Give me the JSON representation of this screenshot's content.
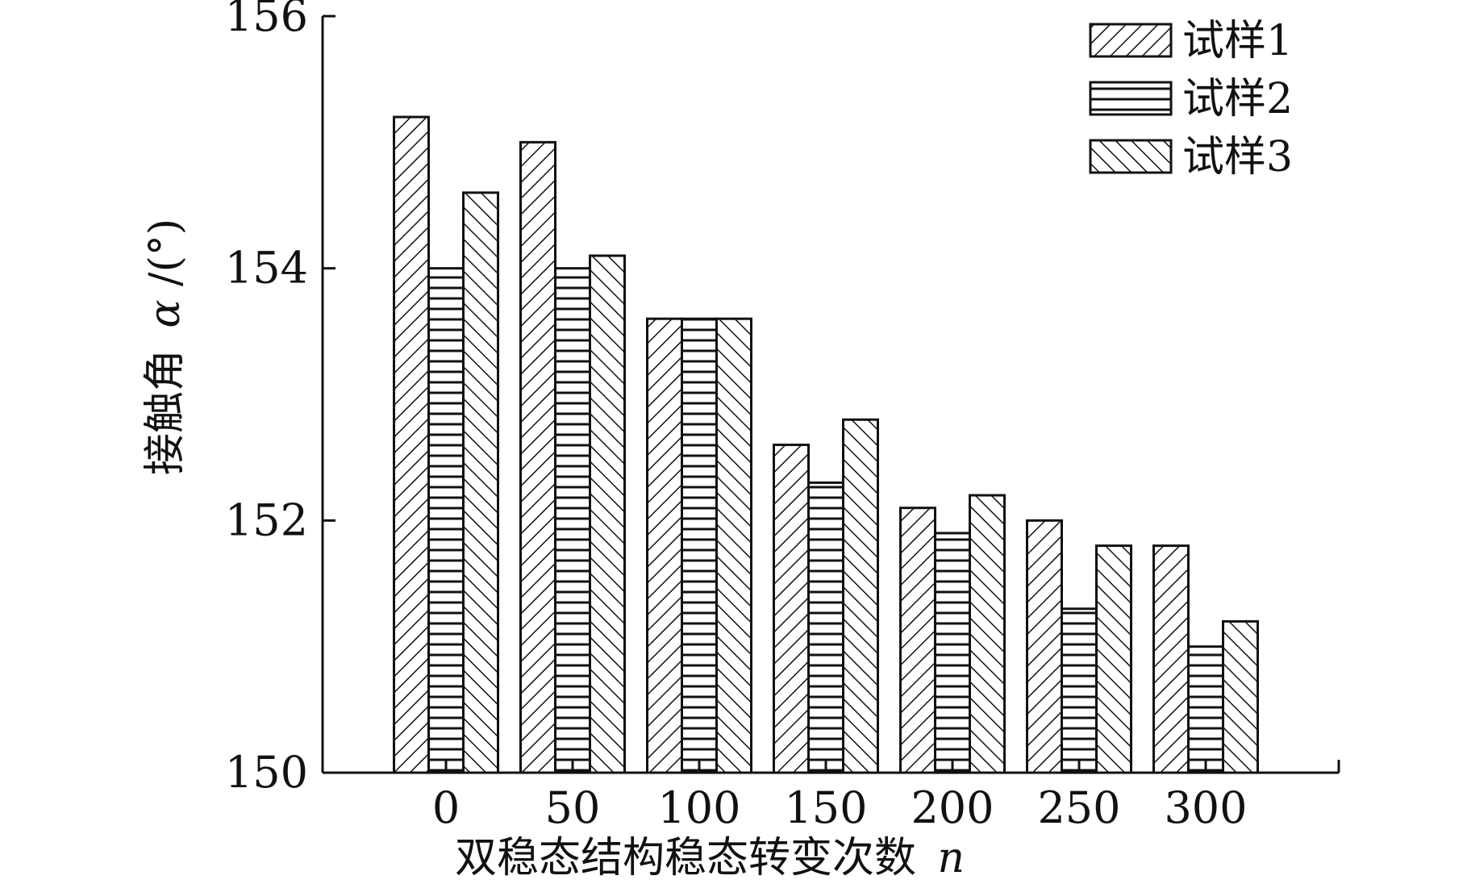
{
  "chart_data": {
    "type": "bar",
    "title": "",
    "xlabel": "双稳态结构稳态转变次数",
    "xlabel_var": "n",
    "ylabel": "接触角",
    "ylabel_var": "α",
    "ylabel_unit": "/(°)",
    "categories": [
      "0",
      "50",
      "100",
      "150",
      "200",
      "250",
      "300"
    ],
    "ylim": [
      150,
      156
    ],
    "yticks": [
      "150",
      "152",
      "154",
      "156"
    ],
    "grid": false,
    "legend_position": "top-right",
    "series": [
      {
        "name": "试样1",
        "pattern": "hatch-forward",
        "values": [
          155.2,
          155.0,
          153.6,
          152.6,
          152.1,
          152.0,
          151.8
        ]
      },
      {
        "name": "试样2",
        "pattern": "hatch-horizontal",
        "values": [
          154.0,
          154.0,
          153.6,
          152.3,
          151.9,
          151.3,
          151.0
        ]
      },
      {
        "name": "试样3",
        "pattern": "hatch-backward",
        "values": [
          154.6,
          154.1,
          153.6,
          152.8,
          152.2,
          151.8,
          151.2
        ]
      }
    ],
    "colors": {
      "stroke": "#111111",
      "fill": "#ffffff"
    }
  }
}
